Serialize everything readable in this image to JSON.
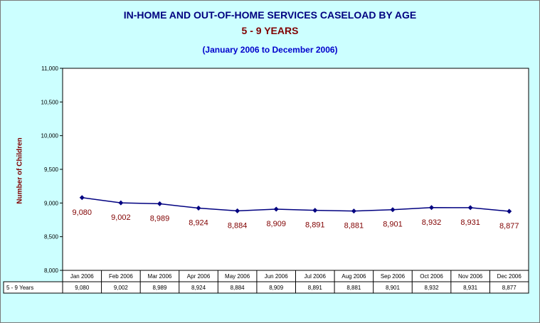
{
  "chart_data": {
    "type": "line",
    "title": "IN-HOME AND OUT-OF-HOME SERVICES CASELOAD BY AGE",
    "subtitle": "5 - 9 YEARS",
    "date_range": "(January 2006 to December 2006)",
    "ylabel": "Number of Children",
    "ylim": [
      8000,
      11000
    ],
    "yticks": [
      "8,000",
      "8,500",
      "9,000",
      "9,500",
      "10,000",
      "10,500",
      "11,000"
    ],
    "categories": [
      "Jan 2006",
      "Feb 2006",
      "Mar 2006",
      "Apr 2006",
      "May 2006",
      "Jun 2006",
      "Jul 2006",
      "Aug 2006",
      "Sep 2006",
      "Oct 2006",
      "Nov 2006",
      "Dec 2006"
    ],
    "series": [
      {
        "name": "5 - 9 Years",
        "values": [
          9080,
          9002,
          8989,
          8924,
          8884,
          8909,
          8891,
          8881,
          8901,
          8932,
          8931,
          8877
        ],
        "labels": [
          "9,080",
          "9,002",
          "8,989",
          "8,924",
          "8,884",
          "8,909",
          "8,891",
          "8,881",
          "8,901",
          "8,932",
          "8,931",
          "8,877"
        ]
      }
    ],
    "grid": false,
    "legend": "data-table",
    "colors": {
      "background": "#ccffff",
      "plot": "#ffffff",
      "line": "#000080",
      "marker": "#000080",
      "data_label": "#800000",
      "title": "#000080",
      "subtitle": "#800000",
      "date_range": "#0000cc"
    }
  }
}
